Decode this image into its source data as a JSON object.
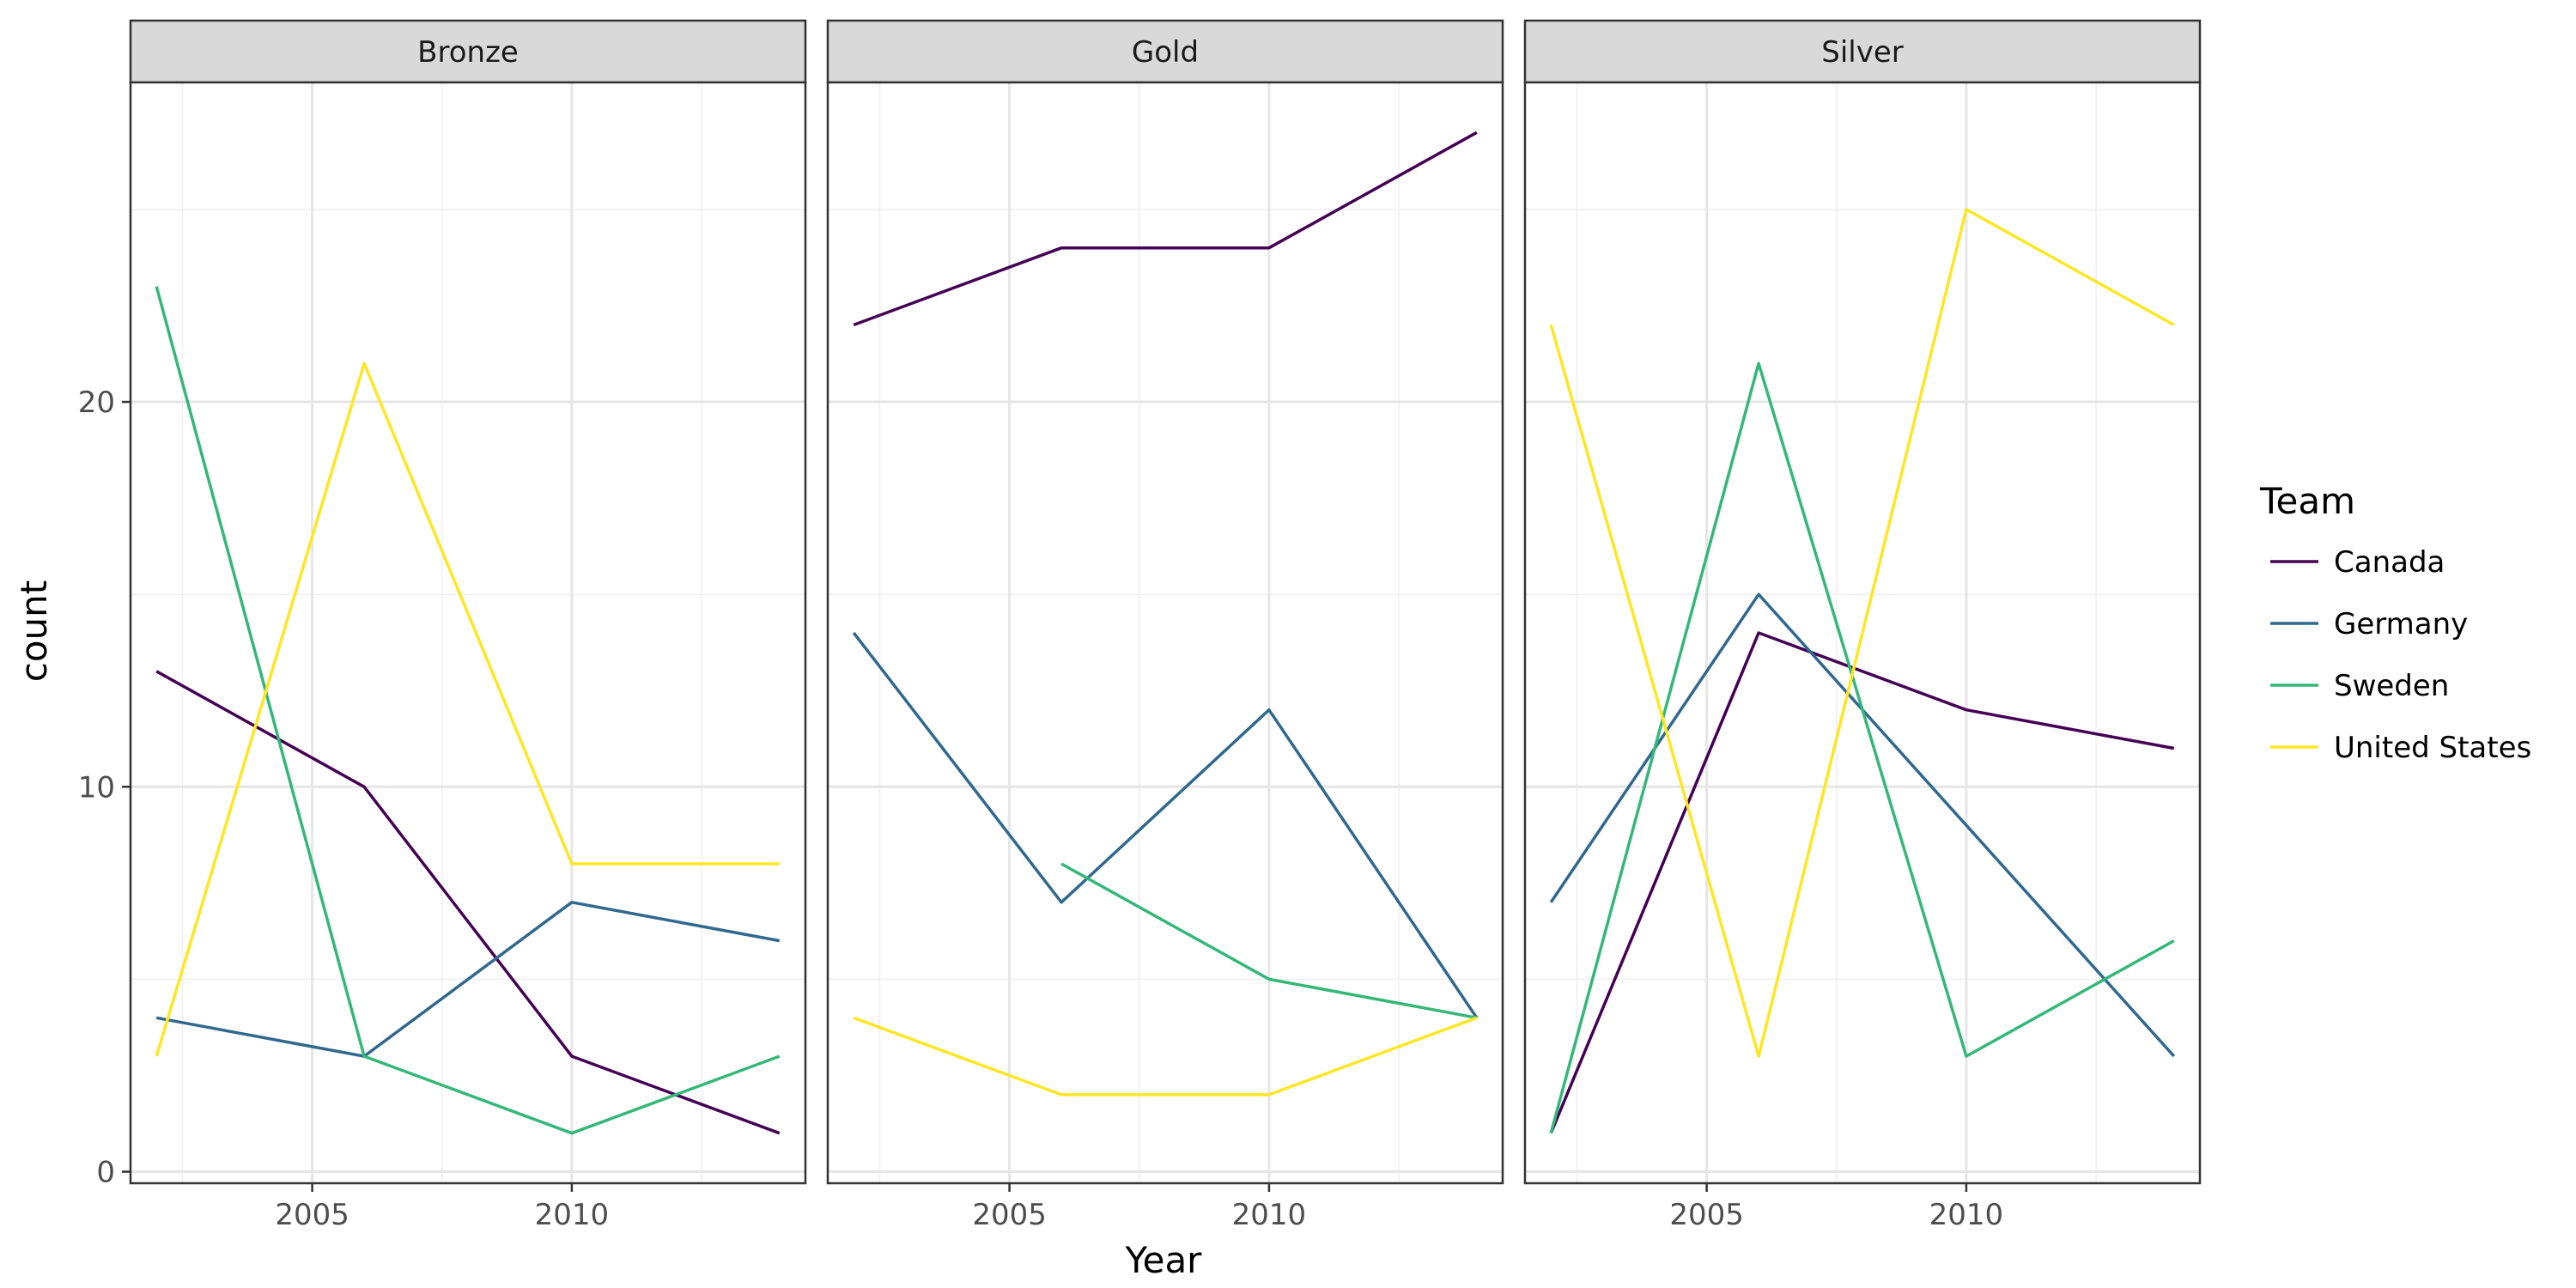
{
  "chart_data": {
    "type": "line",
    "facet_by": "Medal",
    "xlabel": "Year",
    "ylabel": "count",
    "xlim": [
      2001.5,
      2014.5
    ],
    "ylim": [
      -0.3,
      28.3
    ],
    "x_ticks": [
      2005,
      2010
    ],
    "y_ticks": [
      0,
      10,
      20
    ],
    "grid": true,
    "legend_title": "Team",
    "legend_position": "right",
    "series": [
      {
        "name": "Canada",
        "color": "#440154"
      },
      {
        "name": "Germany",
        "color": "#31688E"
      },
      {
        "name": "Sweden",
        "color": "#35B779"
      },
      {
        "name": "United States",
        "color": "#FDE725"
      }
    ],
    "panels": [
      {
        "label": "Bronze",
        "lines": [
          {
            "series": "Canada",
            "points": [
              [
                2002,
                13
              ],
              [
                2006,
                10
              ],
              [
                2010,
                3
              ],
              [
                2014,
                1
              ]
            ]
          },
          {
            "series": "Germany",
            "points": [
              [
                2002,
                4
              ],
              [
                2006,
                3
              ],
              [
                2010,
                7
              ],
              [
                2014,
                6
              ]
            ]
          },
          {
            "series": "Sweden",
            "points": [
              [
                2002,
                23
              ],
              [
                2006,
                3
              ],
              [
                2010,
                1
              ],
              [
                2014,
                3
              ]
            ]
          },
          {
            "series": "United States",
            "points": [
              [
                2002,
                3
              ],
              [
                2006,
                21
              ],
              [
                2010,
                8
              ],
              [
                2014,
                8
              ]
            ]
          }
        ]
      },
      {
        "label": "Gold",
        "lines": [
          {
            "series": "Canada",
            "points": [
              [
                2002,
                22
              ],
              [
                2006,
                24
              ],
              [
                2010,
                24
              ],
              [
                2014,
                27
              ]
            ]
          },
          {
            "series": "Germany",
            "points": [
              [
                2002,
                14
              ],
              [
                2006,
                7
              ],
              [
                2010,
                12
              ],
              [
                2014,
                4
              ]
            ]
          },
          {
            "series": "Sweden",
            "points": [
              [
                2006,
                8
              ],
              [
                2010,
                5
              ],
              [
                2014,
                4
              ]
            ]
          },
          {
            "series": "United States",
            "points": [
              [
                2002,
                4
              ],
              [
                2006,
                2
              ],
              [
                2010,
                2
              ],
              [
                2014,
                4
              ]
            ]
          }
        ]
      },
      {
        "label": "Silver",
        "lines": [
          {
            "series": "Canada",
            "points": [
              [
                2002,
                1
              ],
              [
                2006,
                14
              ],
              [
                2010,
                12
              ],
              [
                2014,
                11
              ]
            ]
          },
          {
            "series": "Germany",
            "points": [
              [
                2002,
                7
              ],
              [
                2006,
                15
              ],
              [
                2010,
                9
              ],
              [
                2014,
                3
              ]
            ]
          },
          {
            "series": "Sweden",
            "points": [
              [
                2002,
                1
              ],
              [
                2006,
                21
              ],
              [
                2010,
                3
              ],
              [
                2014,
                6
              ]
            ]
          },
          {
            "series": "United States",
            "points": [
              [
                2002,
                22
              ],
              [
                2006,
                3
              ],
              [
                2010,
                25
              ],
              [
                2014,
                22
              ]
            ]
          }
        ]
      }
    ]
  }
}
